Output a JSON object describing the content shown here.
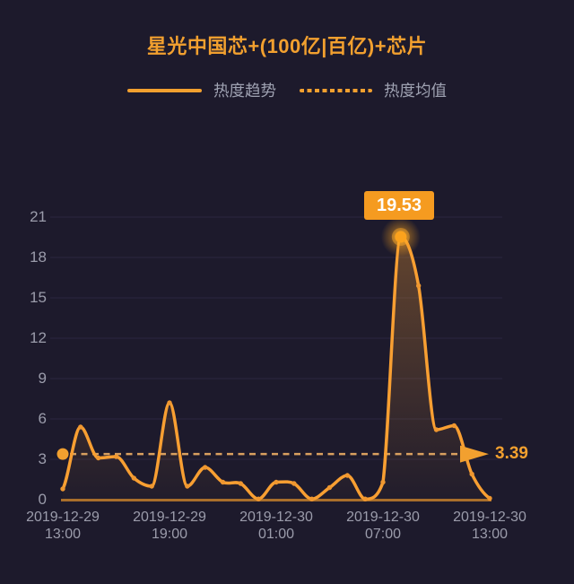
{
  "title": "星光中国芯+(100亿|百亿)+芯片",
  "legend": [
    {
      "label": "热度趋势",
      "style": "solid"
    },
    {
      "label": "热度均值",
      "style": "dashed"
    }
  ],
  "colors": {
    "background": "#1d1a2c",
    "grid": "#2a2740",
    "axis_line": "#a96f2b",
    "trend_line": "#f89f32",
    "mean_line": "#d9a05f",
    "accent": "#f2a02f",
    "callout_bg": "#f59b20",
    "callout_text": "#ffffff",
    "label_text": "#9b9cab"
  },
  "chart_data": {
    "type": "line",
    "title": "星光中国芯+(100亿|百亿)+芯片",
    "x": [
      "2019-12-29 13:00",
      "2019-12-29 14:00",
      "2019-12-29 15:00",
      "2019-12-29 16:00",
      "2019-12-29 17:00",
      "2019-12-29 18:00",
      "2019-12-29 19:00",
      "2019-12-29 20:00",
      "2019-12-29 21:00",
      "2019-12-29 22:00",
      "2019-12-29 23:00",
      "2019-12-30 00:00",
      "2019-12-30 01:00",
      "2019-12-30 02:00",
      "2019-12-30 03:00",
      "2019-12-30 04:00",
      "2019-12-30 05:00",
      "2019-12-30 06:00",
      "2019-12-30 07:00",
      "2019-12-30 08:00",
      "2019-12-30 09:00",
      "2019-12-30 10:00",
      "2019-12-30 11:00",
      "2019-12-30 12:00",
      "2019-12-30 13:00"
    ],
    "series": [
      {
        "name": "热度趋势",
        "type": "line",
        "style": "solid",
        "values": [
          0.8,
          5.4,
          3.1,
          3.2,
          1.6,
          1.0,
          7.2,
          1.0,
          2.4,
          1.3,
          1.2,
          0.05,
          1.3,
          1.2,
          0.05,
          0.9,
          1.8,
          0.05,
          1.3,
          19.53,
          15.9,
          5.2,
          5.5,
          1.9,
          0.1
        ]
      },
      {
        "name": "热度均值",
        "type": "line",
        "style": "dashed",
        "value": 3.39
      }
    ],
    "peak": {
      "x": "2019-12-30 08:00",
      "value": 19.53,
      "label": "19.53"
    },
    "mean": {
      "value": 3.39,
      "label": "3.39"
    },
    "x_ticks": [
      {
        "date": "2019-12-29",
        "time": "13:00"
      },
      {
        "date": "2019-12-29",
        "time": "19:00"
      },
      {
        "date": "2019-12-30",
        "time": "01:00"
      },
      {
        "date": "2019-12-30",
        "time": "07:00"
      },
      {
        "date": "2019-12-30",
        "time": "13:00"
      }
    ],
    "y_ticks": [
      21,
      18,
      15,
      12,
      9,
      6,
      3,
      0
    ],
    "ylim": [
      0,
      21
    ],
    "grid": "horizontal-only",
    "legend_position": "top"
  }
}
